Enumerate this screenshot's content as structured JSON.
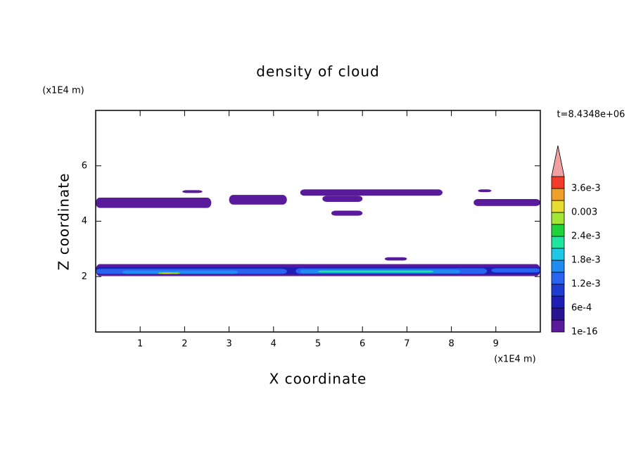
{
  "chart_data": {
    "type": "contour",
    "title": "density of cloud",
    "x_label": "X coordinate",
    "y_label": "Z coordinate",
    "x_unit": "(x1E4 m)",
    "y_unit": "(x1E4 m)",
    "annotation": "t=8.4348e+06",
    "xlim": [
      0,
      10
    ],
    "ylim": [
      0,
      8
    ],
    "xticks": [
      1,
      2,
      3,
      4,
      5,
      6,
      7,
      8,
      9
    ],
    "yticks": [
      2,
      4,
      6
    ],
    "colorbar": {
      "levels": [
        1e-16,
        {
          "value": 0.0003,
          "label": null
        },
        {
          "value": 0.0006,
          "label": "6e-4"
        },
        {
          "value": 0.0009,
          "label": null
        },
        {
          "value": 0.0012,
          "label": "1.2e-3"
        },
        {
          "value": 0.0015,
          "label": null
        },
        {
          "value": 0.0018,
          "label": "1.8e-3"
        },
        {
          "value": 0.0021,
          "label": null
        },
        {
          "value": 0.0024,
          "label": "2.4e-3"
        },
        {
          "value": 0.0027,
          "label": null
        },
        0.003,
        {
          "value": 0.0033,
          "label": null
        },
        {
          "value": 0.0036,
          "label": "3.6e-3"
        }
      ],
      "colors": [
        "#5a1a9c",
        "#2a1496",
        "#1e1eb4",
        "#1e3cd2",
        "#2864f0",
        "#1e8cf0",
        "#1ec8e6",
        "#1ee6a0",
        "#1ed23c",
        "#a0e632",
        "#e6dc32",
        "#f0a028",
        "#f03c28"
      ],
      "over_color": "#f0a0a0"
    },
    "patches": [
      {
        "x": [
          0,
          2.6
        ],
        "z": [
          4.48,
          4.85
        ],
        "value": 0.0001
      },
      {
        "x": [
          1.95,
          2.4
        ],
        "z": [
          5.02,
          5.12
        ],
        "value": 0.0001
      },
      {
        "x": [
          3.0,
          4.3
        ],
        "z": [
          4.6,
          4.95
        ],
        "value": 0.0001
      },
      {
        "x": [
          4.6,
          7.8
        ],
        "z": [
          4.92,
          5.15
        ],
        "value": 0.0001
      },
      {
        "x": [
          5.1,
          6.0
        ],
        "z": [
          4.7,
          4.92
        ],
        "value": 0.0001
      },
      {
        "x": [
          5.3,
          6.0
        ],
        "z": [
          4.2,
          4.38
        ],
        "value": 0.0001
      },
      {
        "x": [
          8.6,
          8.9
        ],
        "z": [
          5.05,
          5.15
        ],
        "value": 0.0001
      },
      {
        "x": [
          8.5,
          10
        ],
        "z": [
          4.55,
          4.8
        ],
        "value": 0.0001
      },
      {
        "x": [
          6.5,
          7.0
        ],
        "z": [
          2.58,
          2.7
        ],
        "value": 0.0001
      },
      {
        "x": [
          0,
          10
        ],
        "z": [
          2.02,
          2.45
        ],
        "value": 0.0001
      },
      {
        "x": [
          0,
          10
        ],
        "z": [
          2.08,
          2.35
        ],
        "value": 0.0007
      },
      {
        "x": [
          0,
          4.3
        ],
        "z": [
          2.1,
          2.28
        ],
        "value": 0.0012
      },
      {
        "x": [
          4.5,
          8.8
        ],
        "z": [
          2.1,
          2.3
        ],
        "value": 0.0012
      },
      {
        "x": [
          8.9,
          10
        ],
        "z": [
          2.15,
          2.3
        ],
        "value": 0.0012
      },
      {
        "x": [
          0.6,
          3.2
        ],
        "z": [
          2.1,
          2.22
        ],
        "value": 0.0016
      },
      {
        "x": [
          4.6,
          8.2
        ],
        "z": [
          2.12,
          2.25
        ],
        "value": 0.0016
      },
      {
        "x": [
          5.0,
          7.6
        ],
        "z": [
          2.15,
          2.22
        ],
        "value": 0.0021
      },
      {
        "x": [
          1.4,
          1.9
        ],
        "z": [
          2.1,
          2.15
        ],
        "value": 0.0028
      },
      {
        "x": [
          1.5,
          1.7
        ],
        "z": [
          2.1,
          2.13
        ],
        "value": 0.0031
      }
    ]
  }
}
